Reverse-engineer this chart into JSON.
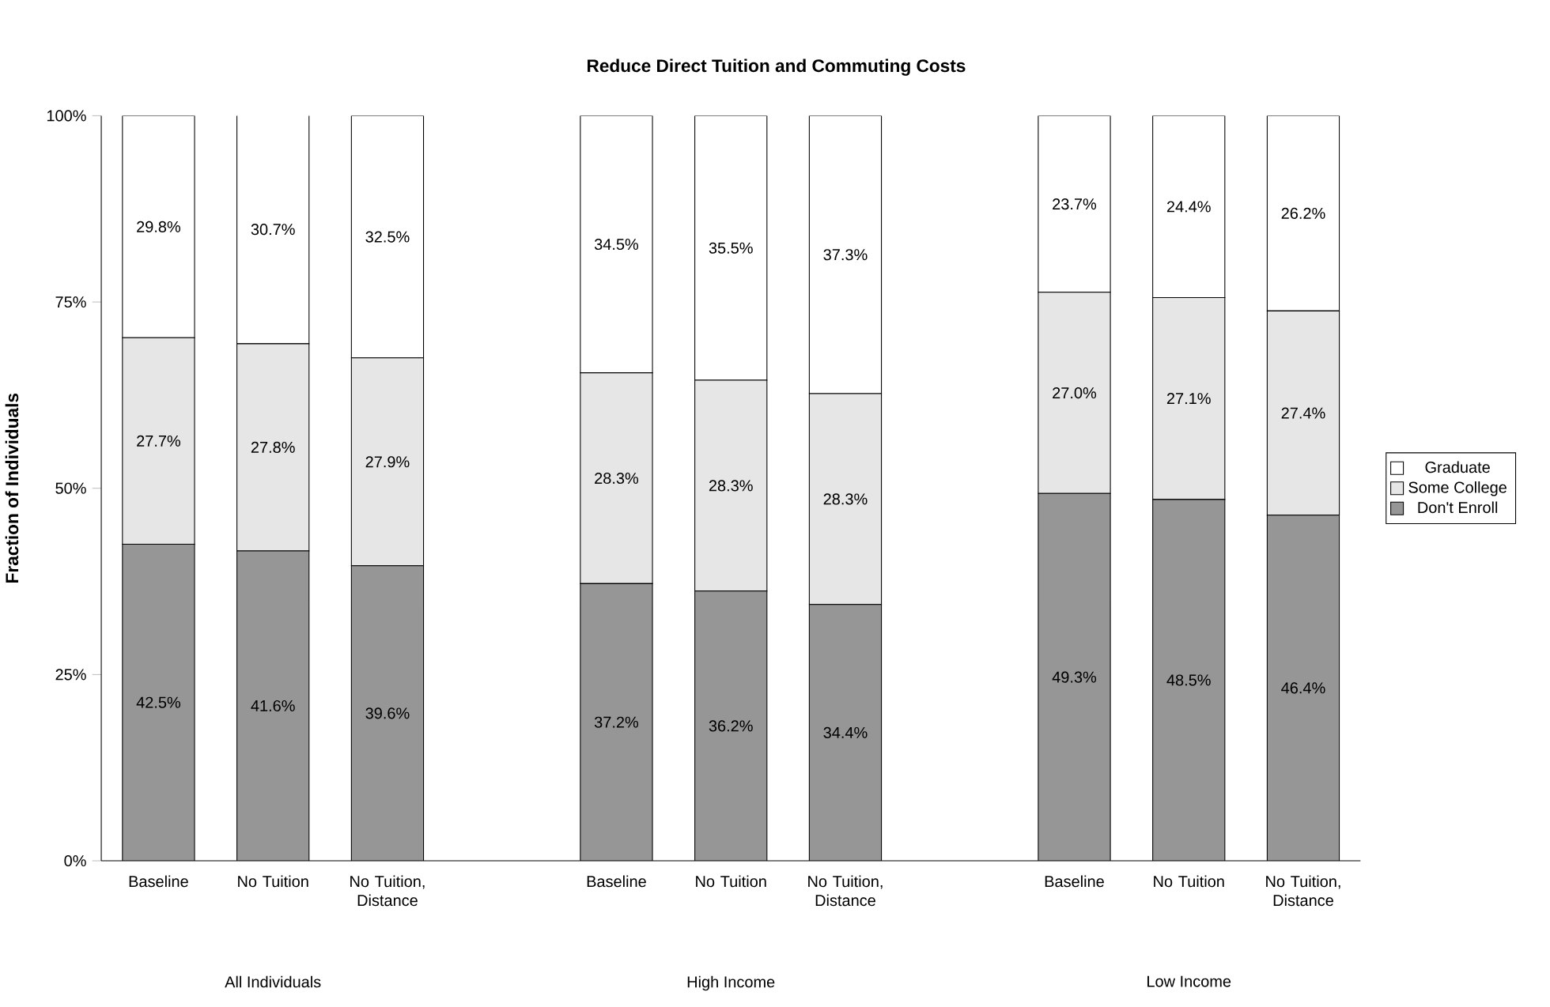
{
  "chart_data": {
    "type": "bar",
    "stacked": true,
    "title": "Reduce Direct Tuition and Commuting Costs",
    "ylabel": "Fraction of Individuals",
    "categories": [
      "Baseline",
      "No Tuition",
      "No Tuition, Distance",
      null,
      "Baseline",
      "No Tuition",
      "No Tuition, Distance",
      null,
      "Baseline",
      "No Tuition",
      "No Tuition, Distance"
    ],
    "series": [
      {
        "name": "Don't Enroll",
        "color": "#969696",
        "values": [
          42.5,
          41.6,
          39.6,
          null,
          37.2,
          36.2,
          34.4,
          null,
          49.3,
          48.5,
          46.4
        ],
        "value_labels": [
          "42.5%",
          "41.6%",
          "39.6%",
          null,
          "37.2%",
          "36.2%",
          "34.4%",
          null,
          "49.3%",
          "48.5%",
          "46.4%"
        ]
      },
      {
        "name": "Some College",
        "color": "#e6e6e6",
        "values": [
          27.7,
          27.8,
          27.9,
          null,
          28.3,
          28.3,
          28.3,
          null,
          27.0,
          27.1,
          27.4
        ],
        "value_labels": [
          "27.7%",
          "27.8%",
          "27.9%",
          null,
          "28.3%",
          "28.3%",
          "28.3%",
          null,
          "27.0%",
          "27.1%",
          "27.4%"
        ]
      },
      {
        "name": "Graduate",
        "color": "#ffffff",
        "values": [
          29.8,
          30.7,
          32.5,
          null,
          34.5,
          35.5,
          37.3,
          null,
          23.7,
          24.4,
          26.2
        ],
        "value_labels": [
          "29.8%",
          "30.7%",
          "32.5%",
          null,
          "34.5%",
          "35.5%",
          "37.3%",
          null,
          "23.7%",
          "24.4%",
          "26.2%"
        ]
      }
    ],
    "ylim": [
      0,
      100
    ],
    "yticks": [
      {
        "value": 0,
        "label": "0%"
      },
      {
        "value": 25,
        "label": "25%"
      },
      {
        "value": 50,
        "label": "50%"
      },
      {
        "value": 75,
        "label": "75%"
      },
      {
        "value": 100,
        "label": "100%"
      }
    ],
    "legend": "right",
    "annotations": [
      "All Individuals",
      "High Income",
      "Low Income"
    ]
  }
}
